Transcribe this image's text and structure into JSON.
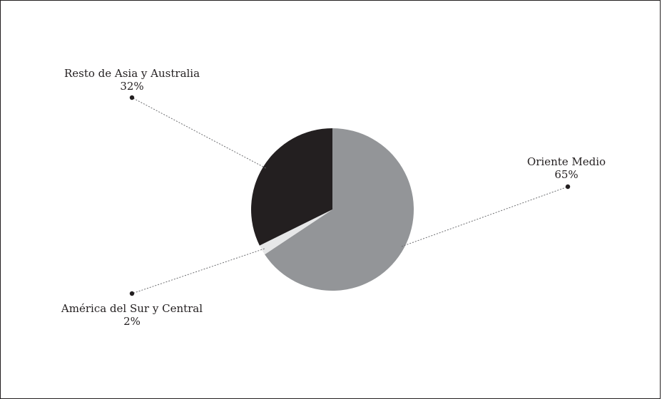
{
  "chart_data": {
    "type": "pie",
    "slices": [
      {
        "label": "Oriente Medio",
        "value_label": "65%",
        "value": 65,
        "color": "#939598"
      },
      {
        "label": "América del Sur y Central",
        "value_label": "2%",
        "value": 2,
        "color": "#e6e7e8"
      },
      {
        "label": "Resto de Asia y Australia",
        "value_label": "32%",
        "value": 32,
        "color": "#231f20"
      }
    ],
    "legend": "none",
    "data_labels": "callout lines with dot markers"
  }
}
